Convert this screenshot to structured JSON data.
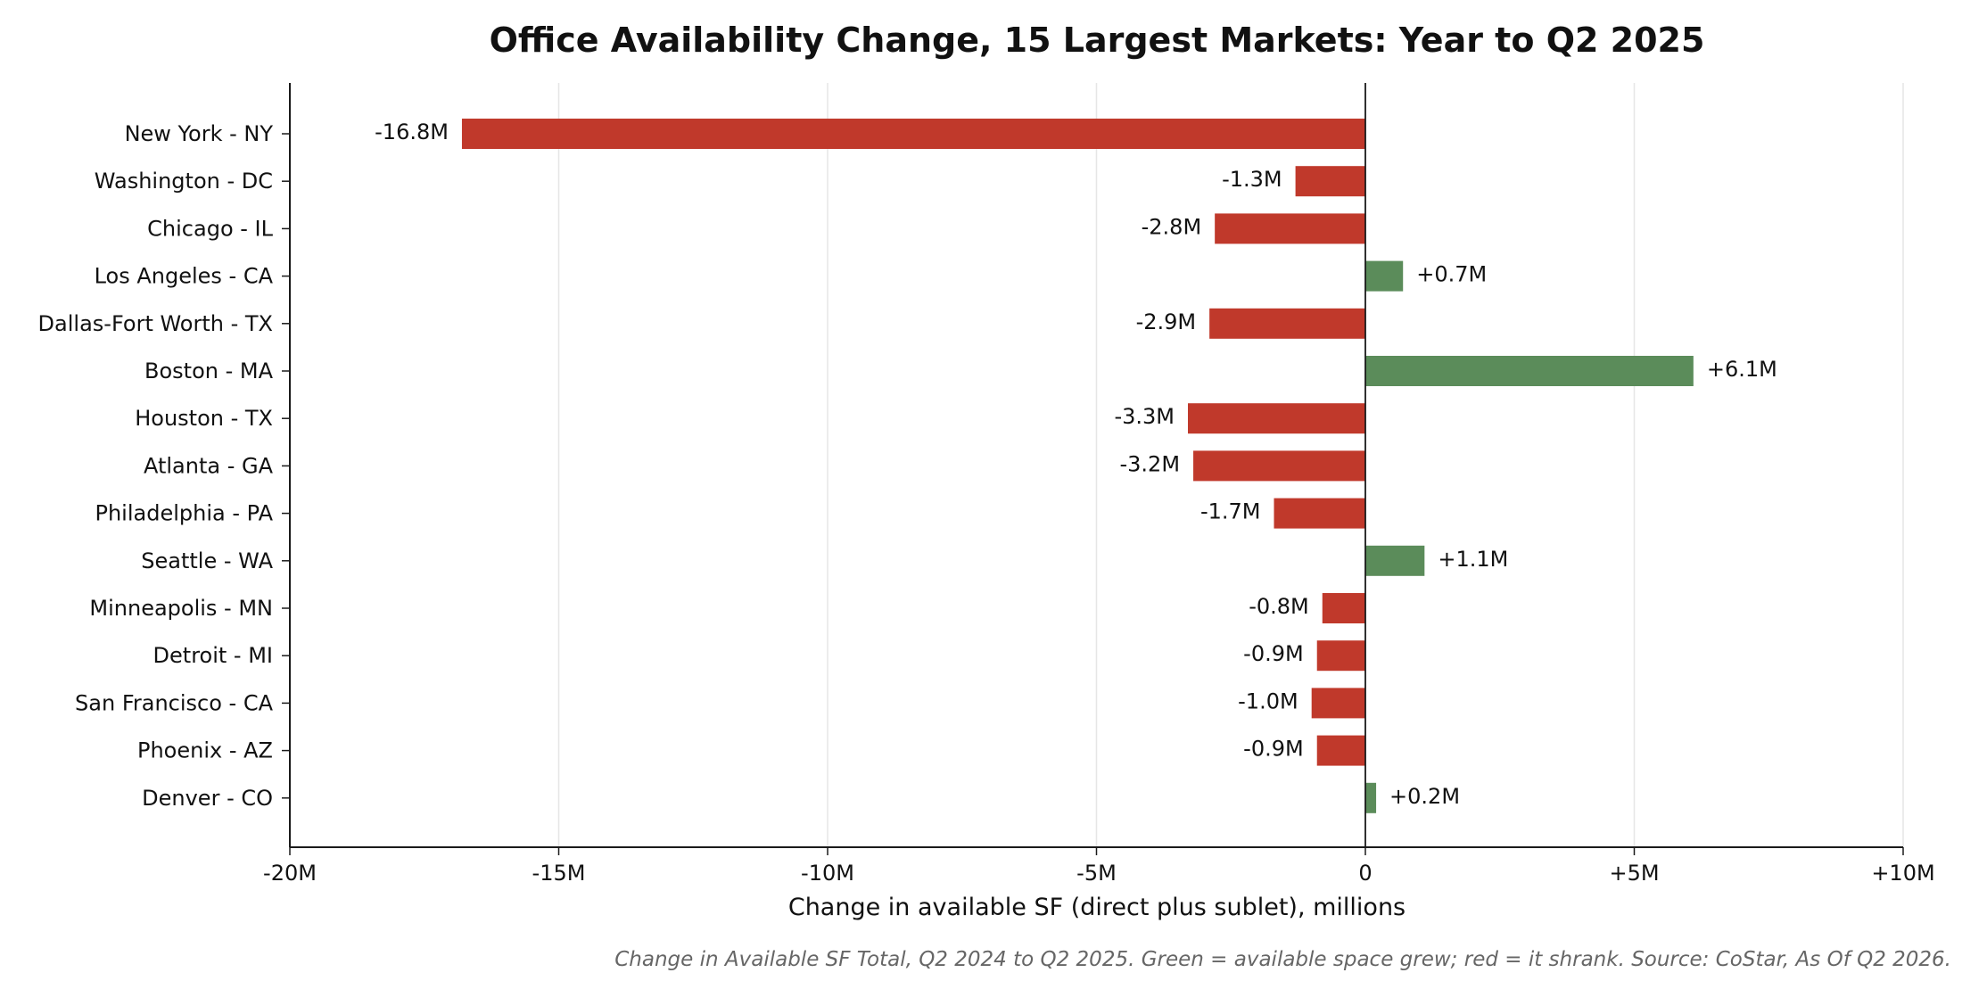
{
  "chart_data": {
    "type": "bar",
    "orientation": "horizontal",
    "title": "Office Availability Change, 15 Largest Markets: Year to Q2 2025",
    "xlabel": "Change in available SF (direct plus sublet), millions",
    "ylabel": "",
    "footnote": "Change in Available SF Total, Q2 2024 to Q2 2025. Green = available space grew; red = it shrank. Source: CoStar, As Of Q2 2026.",
    "xlim": [
      -20,
      10
    ],
    "xticks": [
      {
        "value": -20,
        "label": "-20M"
      },
      {
        "value": -15,
        "label": "-15M"
      },
      {
        "value": -10,
        "label": "-10M"
      },
      {
        "value": -5,
        "label": "-5M"
      },
      {
        "value": 0,
        "label": "0"
      },
      {
        "value": 5,
        "label": "+5M"
      },
      {
        "value": 10,
        "label": "+10M"
      }
    ],
    "grid": "vertical",
    "categories": [
      "New York - NY",
      "Washington - DC",
      "Chicago - IL",
      "Los Angeles - CA",
      "Dallas-Fort Worth - TX",
      "Boston - MA",
      "Houston - TX",
      "Atlanta - GA",
      "Philadelphia - PA",
      "Seattle - WA",
      "Minneapolis - MN",
      "Detroit - MI",
      "San Francisco - CA",
      "Phoenix - AZ",
      "Denver - CO"
    ],
    "values": [
      -16.8,
      -1.3,
      -2.8,
      0.7,
      -2.9,
      6.1,
      -3.3,
      -3.2,
      -1.7,
      1.1,
      -0.8,
      -0.9,
      -1.0,
      -0.9,
      0.2
    ],
    "data_labels": [
      "-16.8M",
      "-1.3M",
      "-2.8M",
      "+0.7M",
      "-2.9M",
      "+6.1M",
      "-3.3M",
      "-3.2M",
      "-1.7M",
      "+1.1M",
      "-0.8M",
      "-0.9M",
      "-1.0M",
      "-0.9M",
      "+0.2M"
    ],
    "colors": {
      "positive": "#5b8c5a",
      "negative": "#c0392b",
      "axis": "#1a1a1a",
      "grid": "#e6e6e6"
    }
  }
}
